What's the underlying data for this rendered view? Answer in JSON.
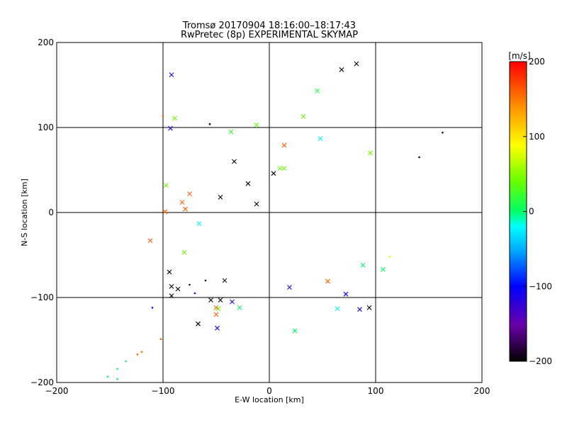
{
  "chart_data": {
    "type": "scatter",
    "title": "Tromsø 20170904 18:16:00–18:17:43",
    "subtitle": "RwPretec (8p) EXPERIMENTAL SKYMAP",
    "xlabel": "E-W location [km]",
    "ylabel": "N-S location [km]",
    "xlim": [
      -200,
      200
    ],
    "ylim": [
      -200,
      200
    ],
    "xticks": [
      -200,
      -100,
      0,
      100,
      200
    ],
    "yticks": [
      -200,
      -100,
      0,
      100,
      200
    ],
    "grid": true,
    "colorbar": {
      "label": "[m/s]",
      "min": -200,
      "max": 200,
      "ticks": [
        200,
        100,
        0,
        -100,
        -200
      ]
    },
    "series": [
      {
        "marker": "x",
        "points": [
          {
            "x": -92,
            "y": 162,
            "v": -120
          },
          {
            "x": 68,
            "y": 168,
            "v": -200
          },
          {
            "x": 82,
            "y": 175,
            "v": -200
          },
          {
            "x": 45,
            "y": 143,
            "v": 10
          },
          {
            "x": -89,
            "y": 111,
            "v": 40
          },
          {
            "x": -93,
            "y": 99,
            "v": -120
          },
          {
            "x": 32,
            "y": 113,
            "v": 40
          },
          {
            "x": -36,
            "y": 95,
            "v": 20
          },
          {
            "x": -12,
            "y": 103,
            "v": 40
          },
          {
            "x": 48,
            "y": 87,
            "v": -20
          },
          {
            "x": 14,
            "y": 79,
            "v": 160
          },
          {
            "x": -33,
            "y": 60,
            "v": -200
          },
          {
            "x": 95,
            "y": 70,
            "v": 40
          },
          {
            "x": -97,
            "y": 32,
            "v": 40
          },
          {
            "x": -75,
            "y": 22,
            "v": 160
          },
          {
            "x": -82,
            "y": 12,
            "v": 160
          },
          {
            "x": -46,
            "y": 18,
            "v": -200
          },
          {
            "x": -98,
            "y": 1,
            "v": 160
          },
          {
            "x": -79,
            "y": 4,
            "v": 160
          },
          {
            "x": 10,
            "y": 52,
            "v": 40
          },
          {
            "x": 14,
            "y": 52,
            "v": 40
          },
          {
            "x": 4,
            "y": 46,
            "v": -200
          },
          {
            "x": -20,
            "y": 34,
            "v": -200
          },
          {
            "x": -12,
            "y": 10,
            "v": -200
          },
          {
            "x": -66,
            "y": -13,
            "v": -20
          },
          {
            "x": -112,
            "y": -33,
            "v": 160
          },
          {
            "x": -80,
            "y": -47,
            "v": 40
          },
          {
            "x": -94,
            "y": -70,
            "v": -200
          },
          {
            "x": -92,
            "y": -87,
            "v": -200
          },
          {
            "x": -86,
            "y": -90,
            "v": -200
          },
          {
            "x": -92,
            "y": -98,
            "v": -200
          },
          {
            "x": 88,
            "y": -62,
            "v": 0
          },
          {
            "x": 107,
            "y": -67,
            "v": 0
          },
          {
            "x": 55,
            "y": -81,
            "v": 160
          },
          {
            "x": 19,
            "y": -88,
            "v": -120
          },
          {
            "x": 72,
            "y": -96,
            "v": -100
          },
          {
            "x": -55,
            "y": -103,
            "v": -200
          },
          {
            "x": -46,
            "y": -103,
            "v": -200
          },
          {
            "x": -28,
            "y": -112,
            "v": 0
          },
          {
            "x": -35,
            "y": -105,
            "v": -120
          },
          {
            "x": -50,
            "y": -112,
            "v": 160
          },
          {
            "x": -50,
            "y": -120,
            "v": 160
          },
          {
            "x": -49,
            "y": -136,
            "v": -120
          },
          {
            "x": -67,
            "y": -131,
            "v": -200
          },
          {
            "x": 64,
            "y": -113,
            "v": -20
          },
          {
            "x": 85,
            "y": -114,
            "v": -120
          },
          {
            "x": 94,
            "y": -112,
            "v": -200
          },
          {
            "x": 24,
            "y": -139,
            "v": 0
          },
          {
            "x": -48,
            "y": -113,
            "v": 40
          },
          {
            "x": -42,
            "y": -80,
            "v": -180
          }
        ]
      },
      {
        "marker": "dot",
        "points": [
          {
            "x": 163,
            "y": 94,
            "v": -200
          },
          {
            "x": 141,
            "y": 65,
            "v": -200
          },
          {
            "x": -56,
            "y": 104,
            "v": -200
          },
          {
            "x": -100,
            "y": 113,
            "v": 160
          },
          {
            "x": -102,
            "y": -149,
            "v": 160
          },
          {
            "x": -120,
            "y": -164,
            "v": 160
          },
          {
            "x": -124,
            "y": -167,
            "v": 160
          },
          {
            "x": -135,
            "y": -175,
            "v": 0
          },
          {
            "x": -143,
            "y": -184,
            "v": 0
          },
          {
            "x": -152,
            "y": -193,
            "v": 0
          },
          {
            "x": -143,
            "y": -196,
            "v": 0
          },
          {
            "x": 113,
            "y": -52,
            "v": 80
          },
          {
            "x": -110,
            "y": -112,
            "v": -100
          },
          {
            "x": -60,
            "y": -80,
            "v": -180
          },
          {
            "x": -75,
            "y": -85,
            "v": -180
          },
          {
            "x": -70,
            "y": -95,
            "v": -140
          }
        ]
      }
    ]
  }
}
